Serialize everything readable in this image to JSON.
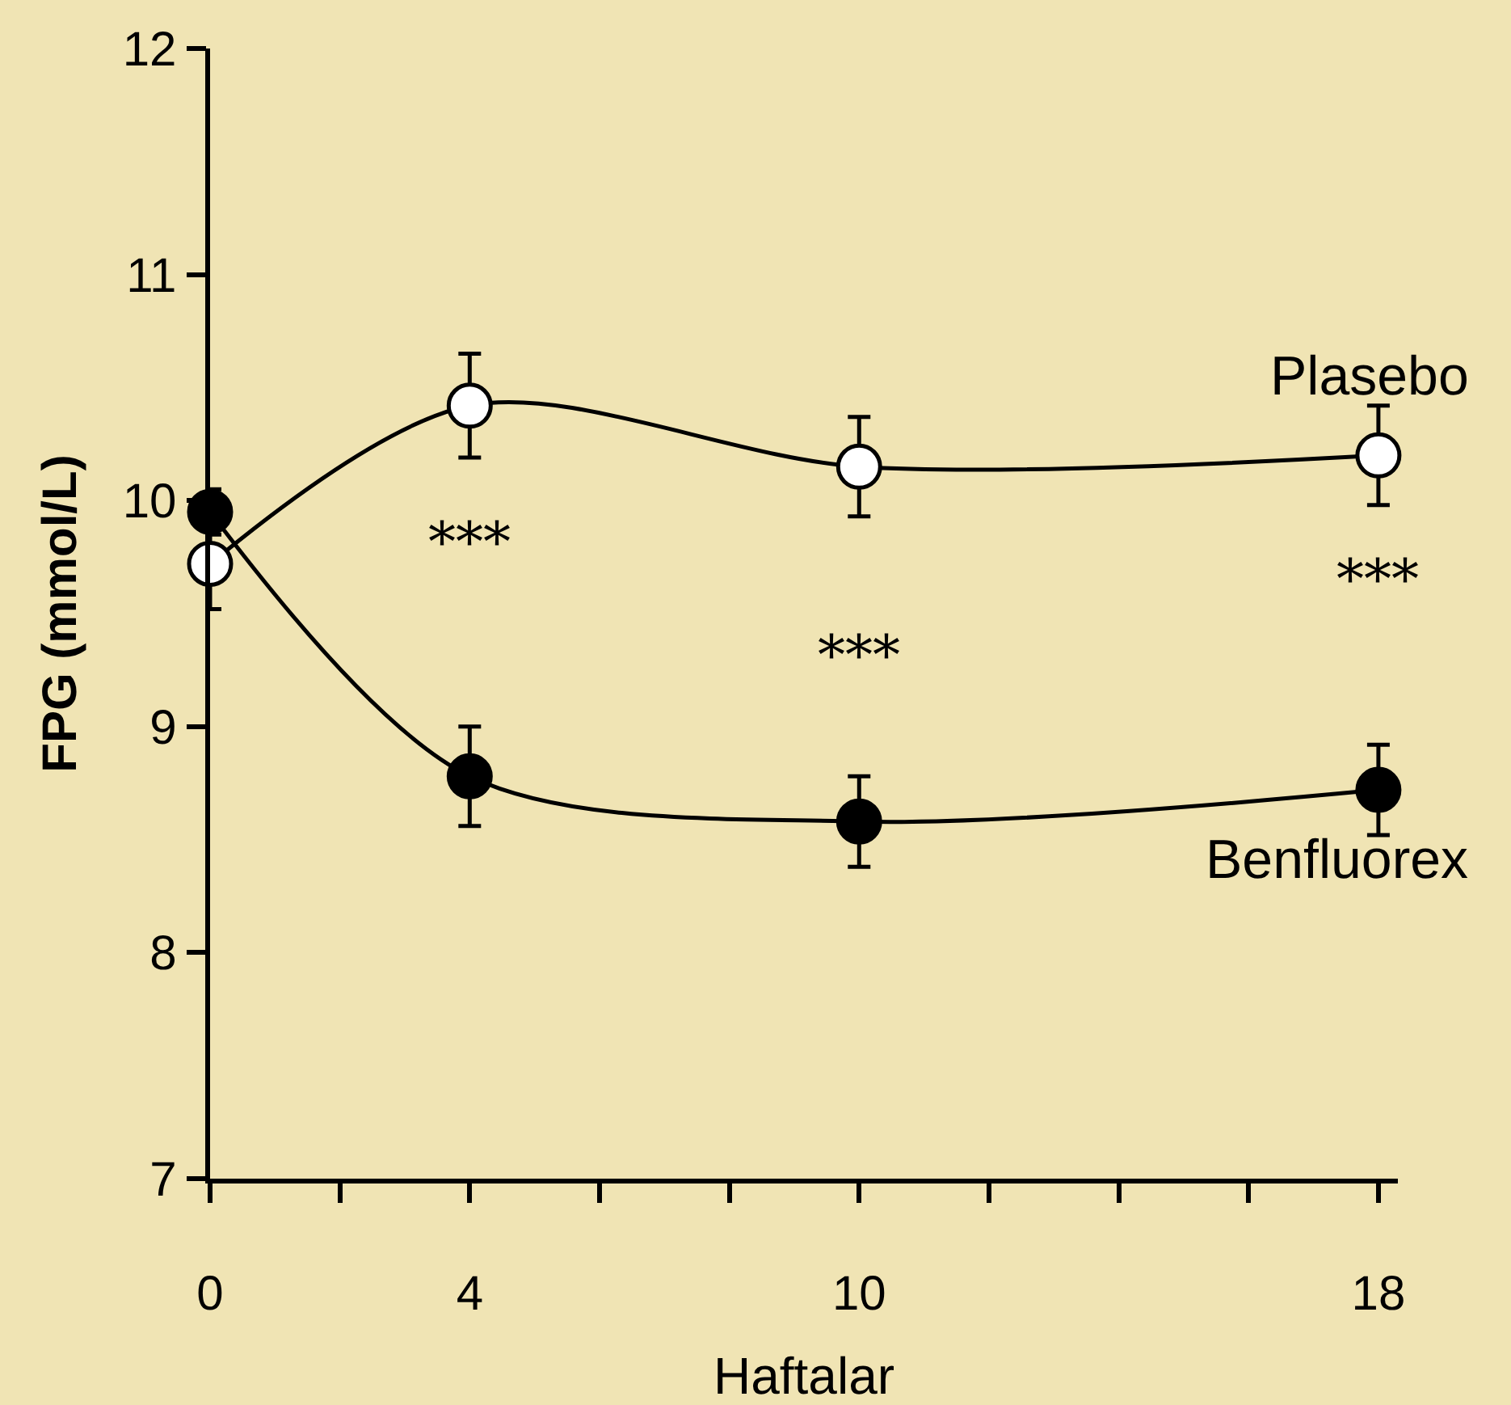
{
  "chart_data": {
    "type": "line",
    "xlabel": "Haftalar",
    "ylabel": "FPG (mmol/L)",
    "x": [
      0,
      4,
      10,
      18
    ],
    "series": [
      {
        "name": "Plasebo",
        "color": "#ffffff",
        "values": [
          9.72,
          10.42,
          10.15,
          10.2
        ],
        "errors": [
          0.2,
          0.23,
          0.22,
          0.22
        ]
      },
      {
        "name": "Benfluorex",
        "color": "#000000",
        "values": [
          9.95,
          8.78,
          8.58,
          8.72
        ],
        "errors": [
          0.1,
          0.22,
          0.2,
          0.2
        ]
      }
    ],
    "xlim": [
      0,
      18.3
    ],
    "xticks": [
      0,
      {
        "value": 2,
        "label": null
      },
      4,
      {
        "value": 6,
        "label": null
      },
      {
        "value": 8,
        "label": null
      },
      10,
      {
        "value": 12,
        "label": null
      },
      {
        "value": 14,
        "label": null
      },
      {
        "value": 16,
        "label": null
      },
      18
    ],
    "ylim": [
      7,
      12
    ],
    "yticks": [
      7,
      8,
      9,
      10,
      11,
      12
    ],
    "annotations": [
      "***",
      "***",
      "***"
    ],
    "grid": false,
    "legend": false,
    "marker": "circle",
    "line_style": "solid"
  }
}
